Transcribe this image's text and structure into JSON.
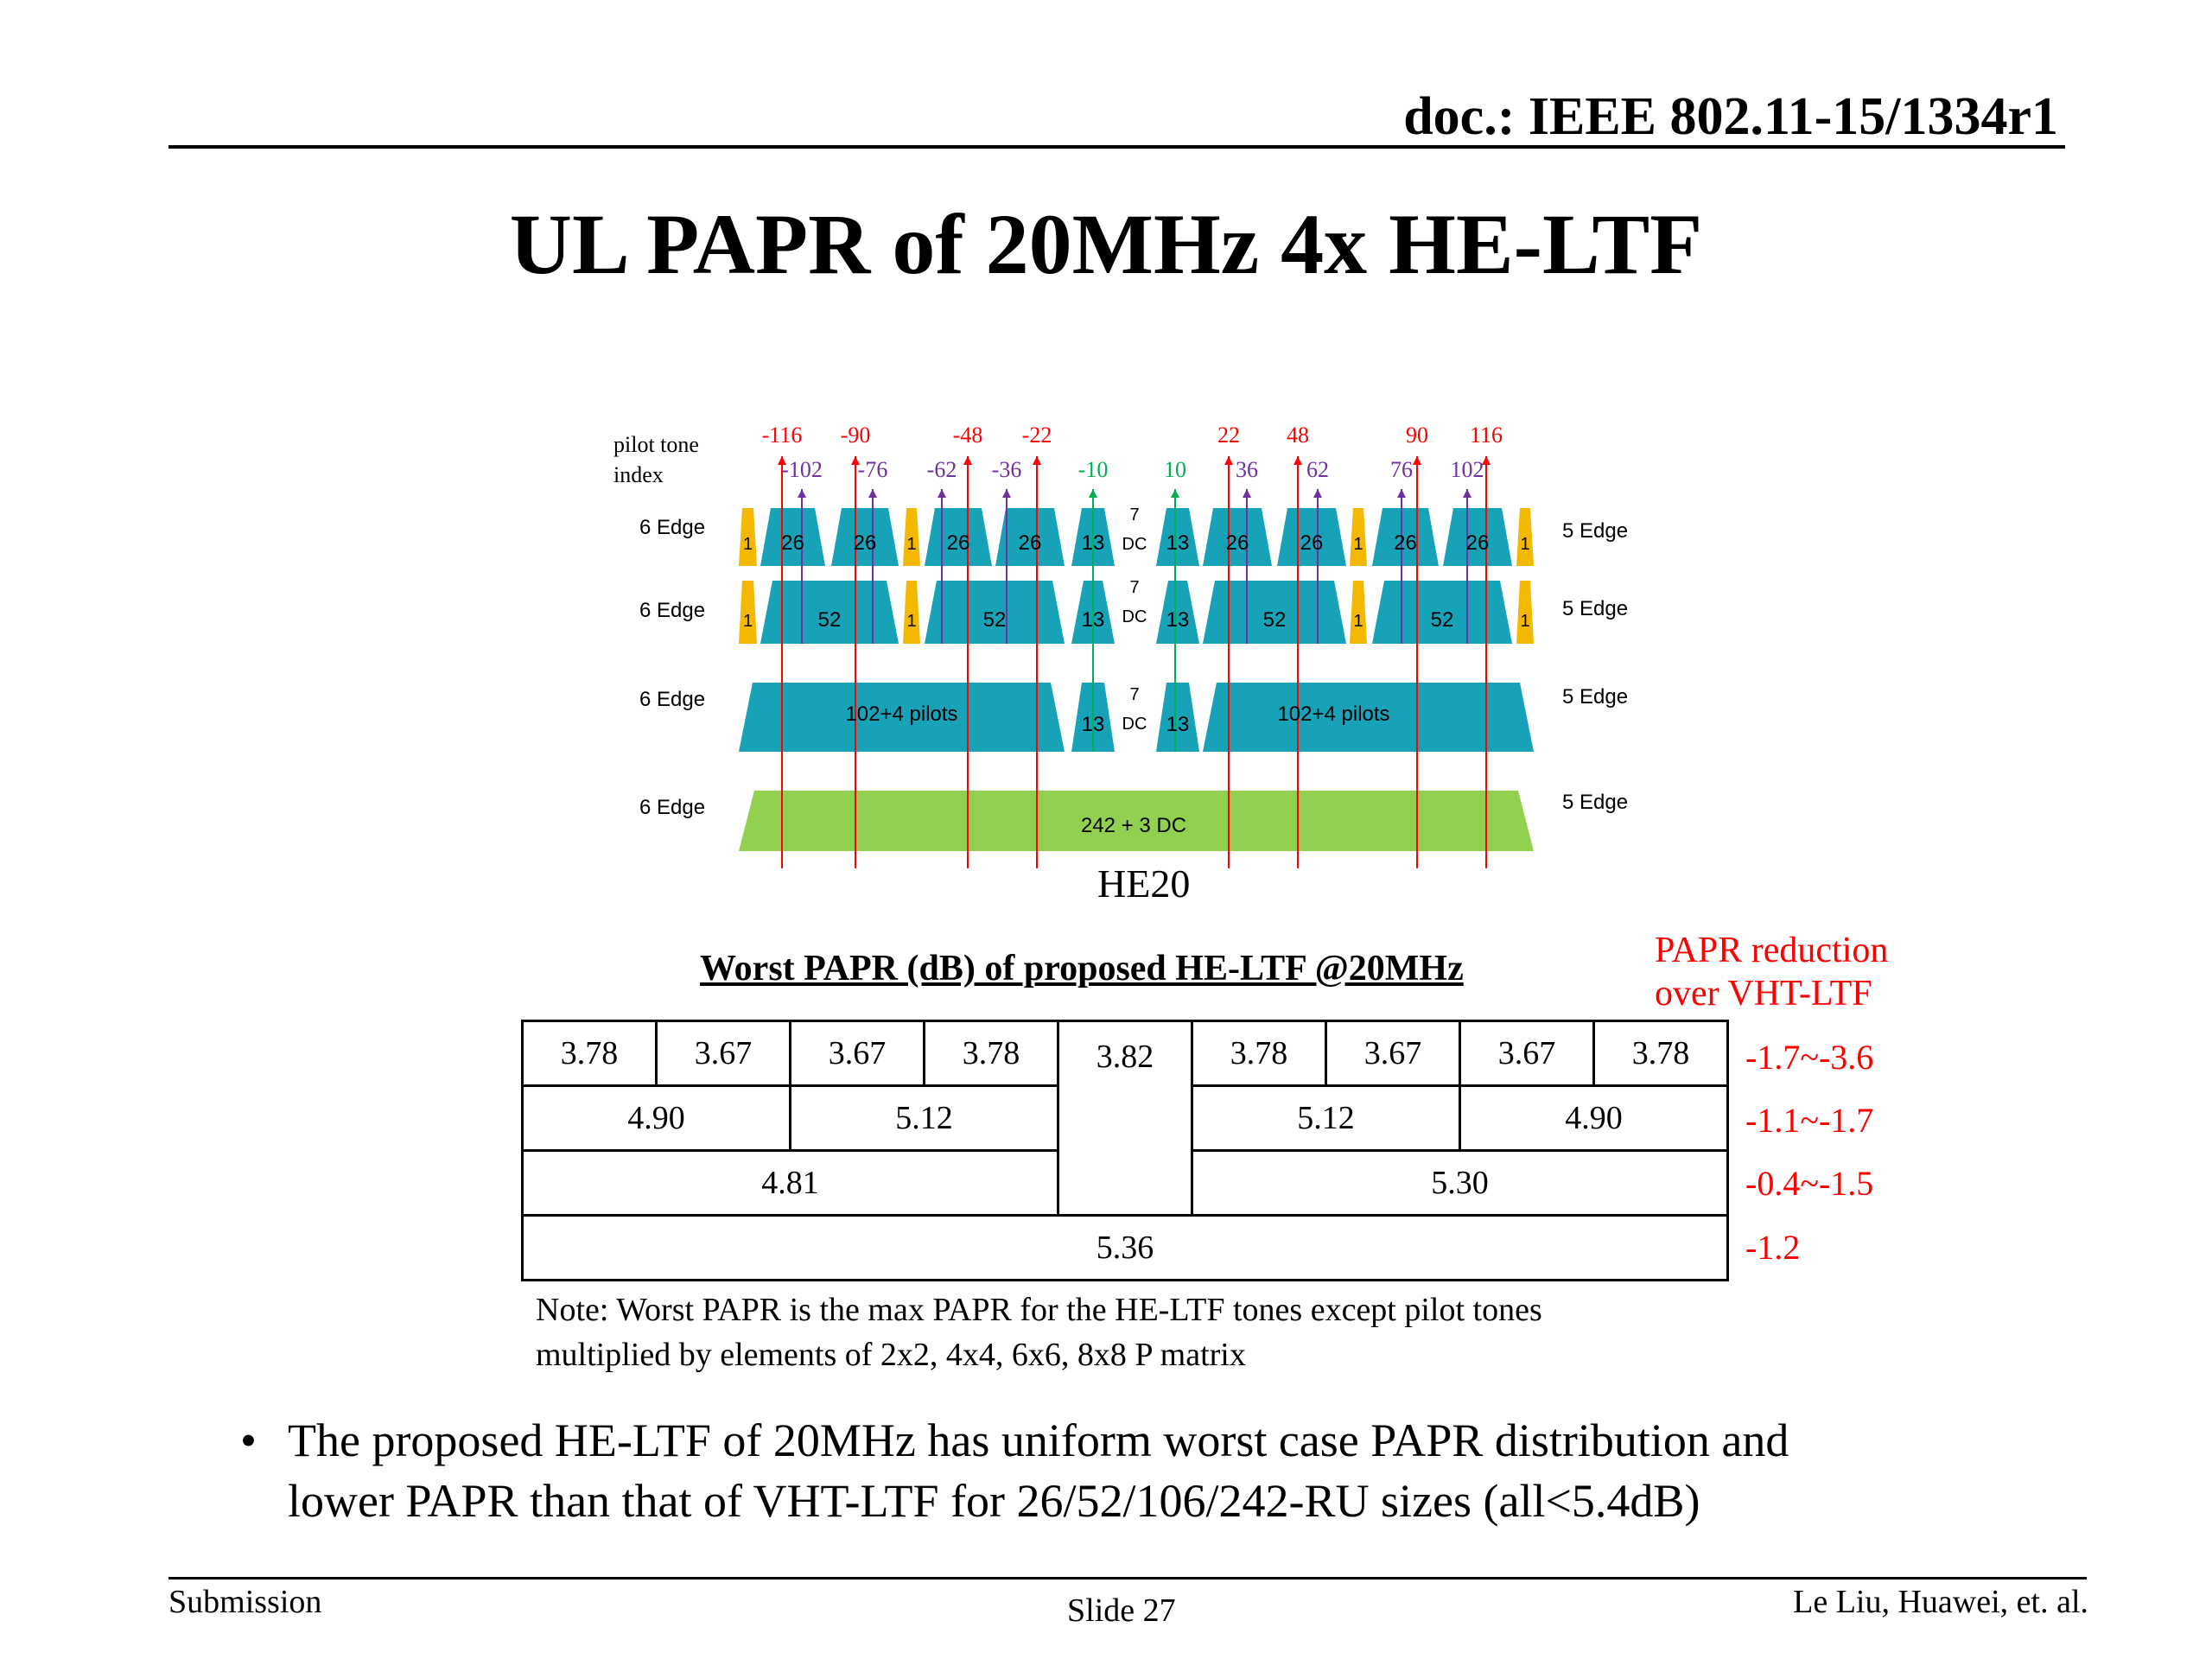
{
  "header": {
    "doc_id": "doc.: IEEE 802.11-15/1334r1"
  },
  "title": "UL PAPR of 20MHz 4x HE-LTF",
  "diagram": {
    "pilot_label": [
      "pilot tone",
      "index"
    ],
    "pilot_indices": [
      {
        "value": "-116",
        "color": "#ff0000"
      },
      {
        "value": "-102",
        "color": "#7030a0"
      },
      {
        "value": "-90",
        "color": "#ff0000"
      },
      {
        "value": "-76",
        "color": "#7030a0"
      },
      {
        "value": "-62",
        "color": "#7030a0"
      },
      {
        "value": "-48",
        "color": "#ff0000"
      },
      {
        "value": "-36",
        "color": "#7030a0"
      },
      {
        "value": "-22",
        "color": "#ff0000"
      },
      {
        "value": "-10",
        "color": "#00b050"
      },
      {
        "value": "10",
        "color": "#00b050"
      },
      {
        "value": "22",
        "color": "#ff0000"
      },
      {
        "value": "36",
        "color": "#7030a0"
      },
      {
        "value": "48",
        "color": "#ff0000"
      },
      {
        "value": "62",
        "color": "#7030a0"
      },
      {
        "value": "76",
        "color": "#7030a0"
      },
      {
        "value": "90",
        "color": "#ff0000"
      },
      {
        "value": "102",
        "color": "#7030a0"
      },
      {
        "value": "116",
        "color": "#ff0000"
      }
    ],
    "left_edge": "6 Edge",
    "right_edge": "5 Edge",
    "dc_count": "7",
    "dc_label": "DC",
    "row1": [
      "1",
      "26",
      "26",
      "1",
      "26",
      "26",
      "13",
      "13",
      "26",
      "26",
      "1",
      "26",
      "26",
      "1"
    ],
    "row2": [
      "1",
      "52",
      "1",
      "52",
      "13",
      "13",
      "52",
      "1",
      "52",
      "1"
    ],
    "row3": [
      "102+4 pilots",
      "13",
      "13",
      "102+4 pilots"
    ],
    "row4": "242 + 3 DC",
    "caption": "HE20",
    "colors": {
      "teal": "#17a2b8",
      "gold": "#f5b800",
      "green": "#92d050"
    }
  },
  "table": {
    "caption": "Worst PAPR (dB) of proposed HE-LTF @20MHz",
    "reduction_header": [
      "PAPR reduction",
      "over VHT-LTF"
    ],
    "row1": [
      "3.78",
      "3.67",
      "3.67",
      "3.78",
      "3.82",
      "3.78",
      "3.67",
      "3.67",
      "3.78"
    ],
    "row2": [
      "4.90",
      "5.12",
      "5.12",
      "4.90"
    ],
    "row3": [
      "4.81",
      "5.30"
    ],
    "row4": [
      "5.36"
    ],
    "reductions": [
      "-1.7~-3.6",
      "-1.1~-1.7",
      "-0.4~-1.5",
      "-1.2"
    ]
  },
  "note": [
    "Note: Worst PAPR is the max PAPR for the HE-LTF tones except pilot tones",
    "multiplied by elements of 2x2, 4x4, 6x6, 8x8 P matrix"
  ],
  "bullet": {
    "marker": "•",
    "lines": [
      "The proposed HE-LTF of 20MHz has uniform worst case PAPR distribution and",
      "lower PAPR than that of VHT-LTF for 26/52/106/242-RU sizes (all<5.4dB)"
    ]
  },
  "footer": {
    "left": "Submission",
    "center": "Slide 27",
    "right": "Le Liu, Huawei, et. al."
  }
}
